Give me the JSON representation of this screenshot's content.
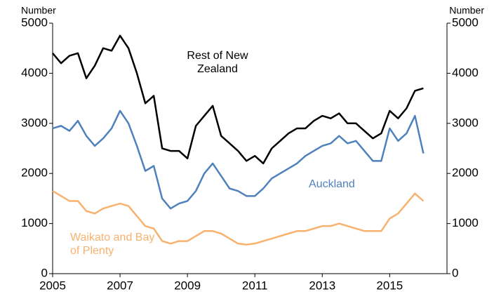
{
  "chart_data": {
    "type": "line",
    "y_label": "Number",
    "y2_label": "Number",
    "x": [
      2005,
      2005.25,
      2005.5,
      2005.75,
      2006,
      2006.25,
      2006.5,
      2006.75,
      2007,
      2007.25,
      2007.5,
      2007.75,
      2008,
      2008.25,
      2008.5,
      2008.75,
      2009,
      2009.25,
      2009.5,
      2009.75,
      2010,
      2010.25,
      2010.5,
      2010.75,
      2011,
      2011.25,
      2011.5,
      2011.75,
      2012,
      2012.25,
      2012.5,
      2012.75,
      2013,
      2013.25,
      2013.5,
      2013.75,
      2014,
      2014.25,
      2014.5,
      2014.75,
      2015,
      2015.25,
      2015.5,
      2015.75,
      2016
    ],
    "series": [
      {
        "name": "Rest of New Zealand",
        "color": "#000000",
        "values": [
          4400,
          4200,
          4350,
          4400,
          3900,
          4150,
          4500,
          4450,
          4750,
          4500,
          4000,
          3400,
          3550,
          2500,
          2450,
          2450,
          2300,
          2950,
          3150,
          3350,
          2750,
          2600,
          2450,
          2250,
          2350,
          2200,
          2500,
          2650,
          2800,
          2900,
          2900,
          3050,
          3150,
          3100,
          3200,
          3000,
          3000,
          2850,
          2700,
          2800,
          3250,
          3100,
          3300,
          3650,
          3700
        ]
      },
      {
        "name": "Auckland",
        "color": "#4f81bd",
        "values": [
          2900,
          2950,
          2850,
          3050,
          2750,
          2550,
          2700,
          2900,
          3250,
          3000,
          2550,
          2050,
          2150,
          1500,
          1300,
          1400,
          1450,
          1650,
          2000,
          2200,
          1950,
          1700,
          1650,
          1550,
          1550,
          1700,
          1900,
          2000,
          2100,
          2200,
          2350,
          2450,
          2550,
          2600,
          2750,
          2600,
          2650,
          2450,
          2250,
          2250,
          2900,
          2650,
          2800,
          3150,
          2400
        ]
      },
      {
        "name": "Waikato and Bay of Plenty",
        "color": "#f8b26e",
        "values": [
          1650,
          1550,
          1450,
          1450,
          1250,
          1200,
          1300,
          1350,
          1400,
          1350,
          1150,
          950,
          900,
          650,
          600,
          650,
          650,
          750,
          850,
          850,
          800,
          700,
          600,
          580,
          600,
          650,
          700,
          750,
          800,
          850,
          850,
          900,
          950,
          950,
          1000,
          950,
          900,
          850,
          850,
          850,
          1100,
          1200,
          1400,
          1600,
          1450
        ]
      }
    ],
    "xlim": [
      2005,
      2016.7
    ],
    "xticks": [
      2005,
      2007,
      2009,
      2011,
      2013,
      2015
    ],
    "ylim": [
      0,
      5000
    ],
    "yticks": [
      0,
      1000,
      2000,
      3000,
      4000,
      5000
    ],
    "y2lim": [
      0,
      5000
    ],
    "y2ticks": [
      0,
      1000,
      2000,
      3000,
      4000,
      5000
    ]
  }
}
